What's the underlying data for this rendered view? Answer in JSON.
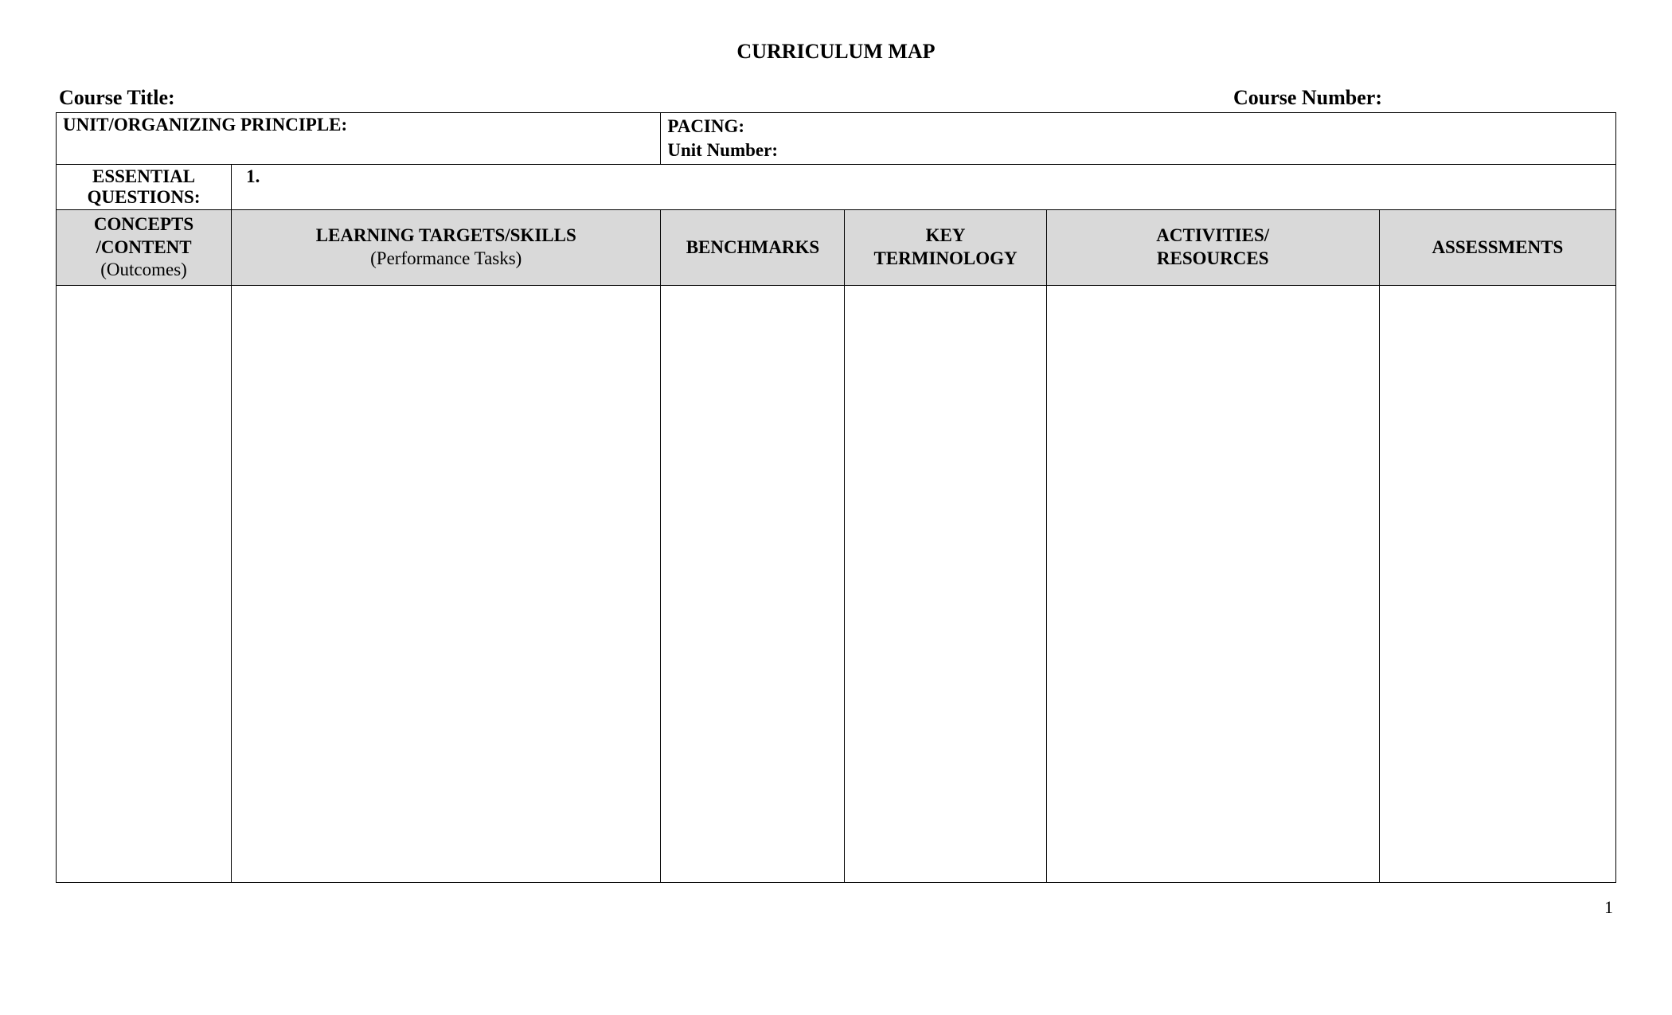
{
  "title": "CURRICULUM MAP",
  "info": {
    "course_title_label": "Course Title:",
    "course_number_label": "Course Number:"
  },
  "headerRow": {
    "unit_principle_label": "UNIT/ORGANIZING PRINCIPLE:",
    "pacing_label": "PACING:",
    "unit_number_label": "Unit Number:"
  },
  "essential": {
    "label_line1": "ESSENTIAL",
    "label_line2": "QUESTIONS:",
    "content": "1."
  },
  "columns": {
    "concepts_line1": "CONCEPTS",
    "concepts_line2": "/CONTENT",
    "concepts_line3": "(Outcomes)",
    "learning_line1": "LEARNING TARGETS/SKILLS",
    "learning_line2": "(Performance Tasks)",
    "benchmarks": "BENCHMARKS",
    "terminology_line1": "KEY",
    "terminology_line2": "TERMINOLOGY",
    "activities_line1": "ACTIVITIES/",
    "activities_line2": "RESOURCES",
    "assessments": "ASSESSMENTS"
  },
  "body": {
    "concepts": "",
    "learning": "",
    "benchmarks": "",
    "terminology": "",
    "activities": "",
    "assessments": ""
  },
  "page_number": "1",
  "style": {
    "background_color": "#ffffff",
    "text_color": "#000000",
    "header_bg_color": "#d9d9d9",
    "border_color": "#000000",
    "title_fontsize": 26,
    "label_fontsize": 26,
    "cell_fontsize": 23,
    "font_family": "Times New Roman"
  }
}
